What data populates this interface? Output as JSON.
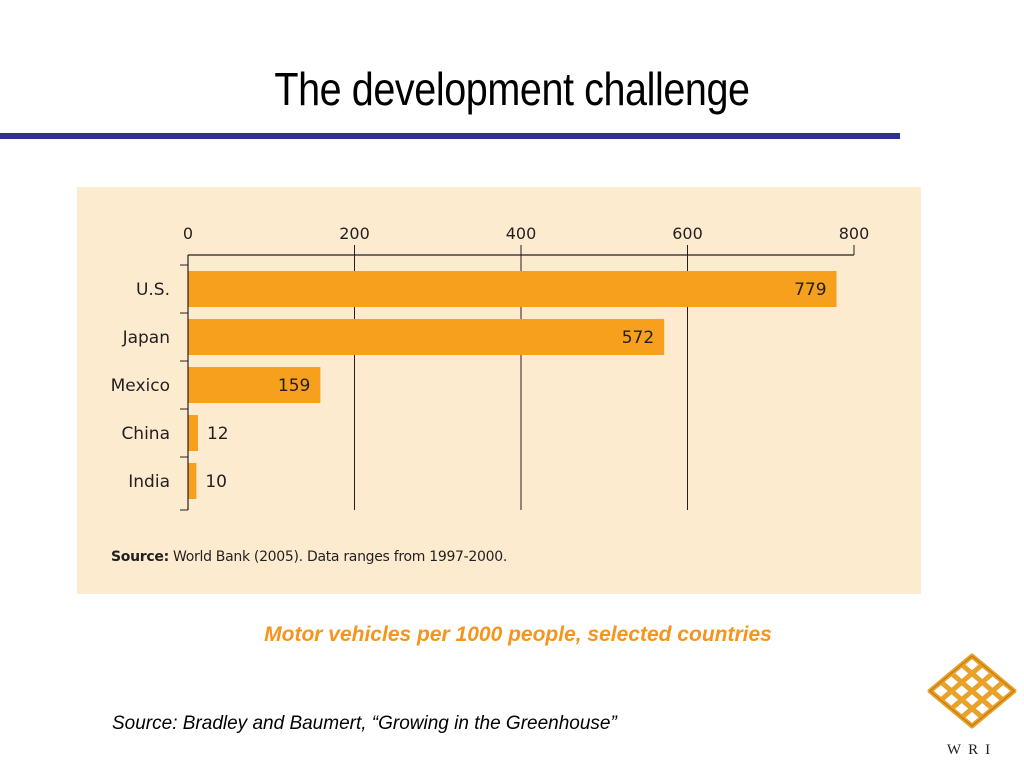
{
  "slide": {
    "title": "The development challenge",
    "caption": "Motor vehicles per 1000 people, selected countries",
    "source": "Source:  Bradley and Baumert, “Growing in the Greenhouse”",
    "logo_text": "WRI"
  },
  "colors": {
    "bar": "#f6a01e",
    "panel": "#fdebd0",
    "rule": "#2e3192",
    "caption": "#f7941d"
  },
  "chart_data": {
    "type": "bar",
    "orientation": "horizontal",
    "categories": [
      "U.S.",
      "Japan",
      "Mexico",
      "China",
      "India"
    ],
    "values": [
      779,
      572,
      159,
      12,
      10
    ],
    "xlim": [
      0,
      800
    ],
    "xticks": [
      0,
      200,
      400,
      600,
      800
    ],
    "tick_position": "top",
    "grid": true,
    "data_labels": true,
    "source_label": "Source:",
    "source_text": "World Bank (2005). Data ranges from 1997-2000."
  }
}
